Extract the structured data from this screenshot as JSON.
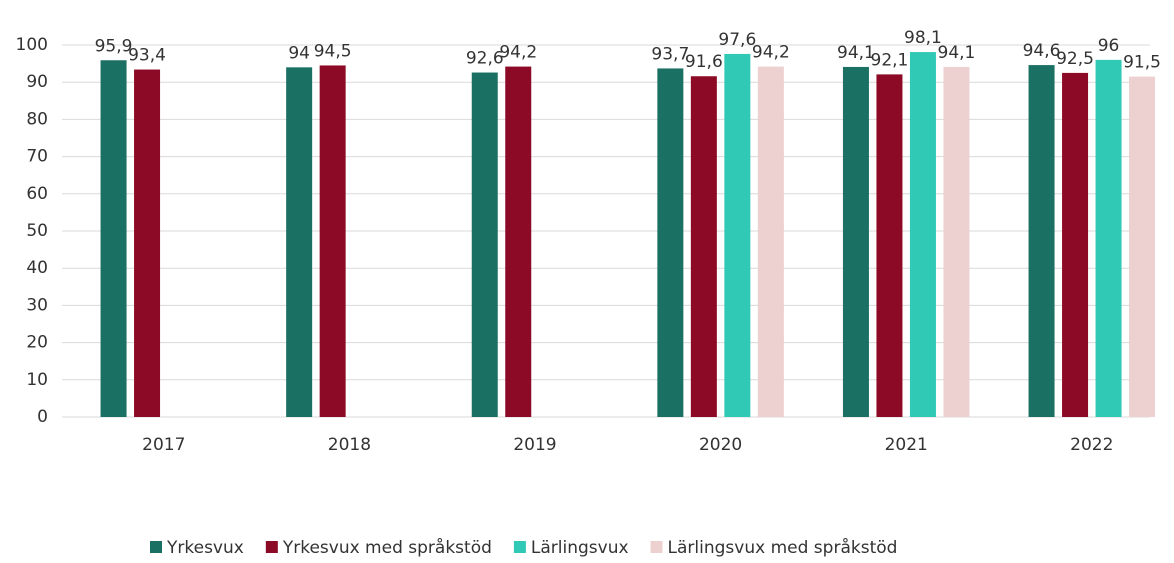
{
  "chart_data": {
    "type": "bar",
    "categories": [
      "2017",
      "2018",
      "2019",
      "2020",
      "2021",
      "2022"
    ],
    "series": [
      {
        "name": "Yrkesvux",
        "color": "#1b7064",
        "values": [
          95.9,
          94,
          92.6,
          93.7,
          94.1,
          94.6
        ],
        "value_labels": [
          "95,9",
          "94",
          "92,6",
          "93,7",
          "94,1",
          "94,6"
        ]
      },
      {
        "name": "Yrkesvux med språkstöd",
        "color": "#8c0a25",
        "values": [
          93.4,
          94.5,
          94.2,
          91.6,
          92.1,
          92.5
        ],
        "value_labels": [
          "93,4",
          "94,5",
          "94,2",
          "91,6",
          "92,1",
          "92,5"
        ]
      },
      {
        "name": "Lärlingsvux",
        "color": "#2fc9b6",
        "values": [
          null,
          null,
          null,
          97.6,
          98.1,
          96
        ],
        "value_labels": [
          null,
          null,
          null,
          "97,6",
          "98,1",
          "96"
        ]
      },
      {
        "name": "Lärlingsvux med språkstöd",
        "color": "#edd0d0",
        "values": [
          null,
          null,
          null,
          94.2,
          94.1,
          91.5
        ],
        "value_labels": [
          null,
          null,
          null,
          "94,2",
          "94,1",
          "91,5"
        ]
      }
    ],
    "ylim": [
      0,
      100
    ],
    "yticks": [
      0,
      10,
      20,
      30,
      40,
      50,
      60,
      70,
      80,
      90,
      100
    ],
    "grid": true,
    "legend": "bottom"
  }
}
